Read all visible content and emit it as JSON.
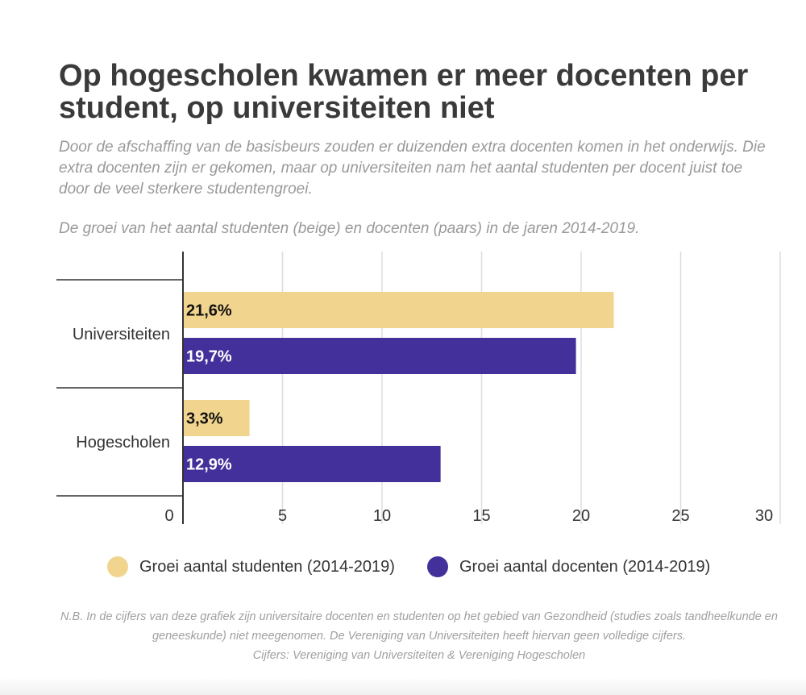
{
  "title": "Op hogescholen kwamen er meer docenten per student, op universiteiten niet",
  "subtitle": "Door de afschaffing van de basisbeurs zouden er duizenden extra docenten komen in het onderwijs. Die extra docenten zijn er gekomen, maar op universiteiten nam het aantal studenten per docent juist toe door de veel sterkere studentengroei.",
  "caption": "De groei van het aantal studenten (beige) en docenten (paars) in de jaren 2014-2019.",
  "footnote": {
    "line1": "N.B.  In de cijfers van deze grafiek zijn universitaire docenten en studenten op het gebied van Gezondheid (studies zoals tandheelkunde en geneeskunde) niet meegenomen. De Vereniging van Universiteiten heeft hiervan geen volledige cijfers.",
    "line2": "Cijfers: Vereniging van Universiteiten & Vereniging Hogescholen"
  },
  "colors": {
    "studenten": "#f1d48e",
    "docenten": "#44309a",
    "grid": "#dddddd",
    "axis": "#333333"
  },
  "chart_data": {
    "type": "bar",
    "orientation": "horizontal",
    "categories": [
      "Universiteiten",
      "Hogescholen"
    ],
    "series": [
      {
        "name": "Groei aantal studenten (2014-2019)",
        "values": [
          21.6,
          3.3
        ],
        "labels": [
          "21,6%",
          "3,3%"
        ],
        "color": "#f1d48e",
        "label_color": "#111111"
      },
      {
        "name": "Groei aantal docenten (2014-2019)",
        "values": [
          19.7,
          12.9
        ],
        "labels": [
          "19,7%",
          "12,9%"
        ],
        "color": "#44309a",
        "label_color": "#ffffff"
      }
    ],
    "xlim": [
      0,
      30
    ],
    "xticks": [
      0,
      5,
      10,
      15,
      20,
      25,
      30
    ],
    "grid": true,
    "legend_position": "bottom"
  }
}
